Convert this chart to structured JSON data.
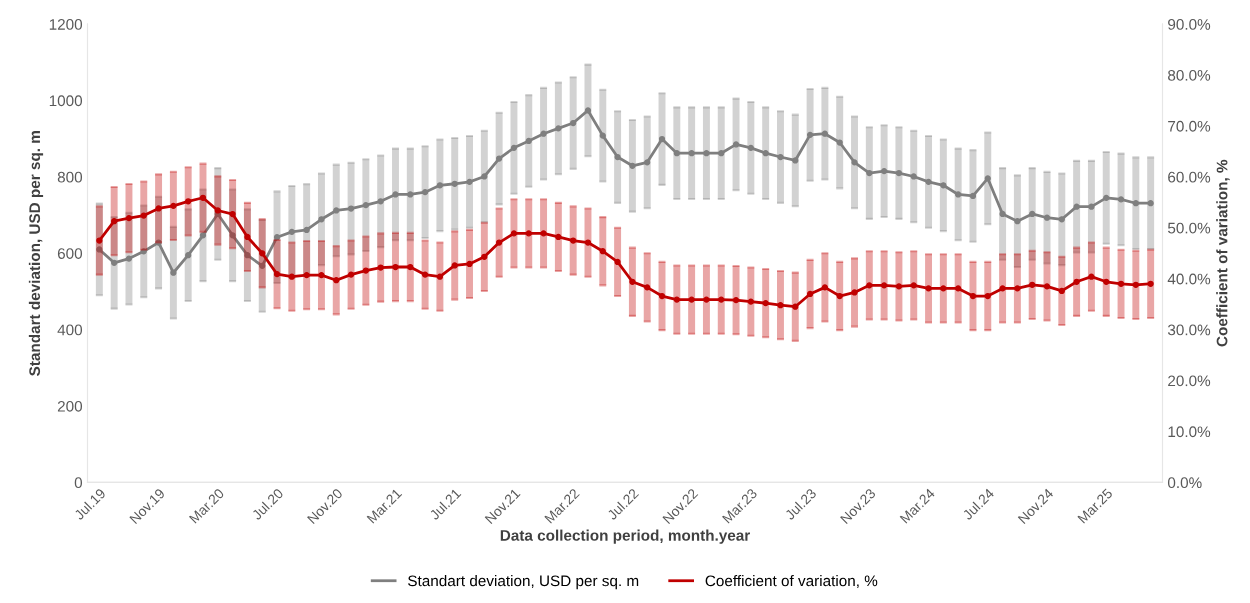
{
  "chart_data": {
    "type": "line",
    "xlabel": "Data collection period, month.year",
    "ylabel": "Standart deviation, USD per sq. m",
    "y2label": "Coefficient of variation, %",
    "categories": [
      "Jul.19",
      null,
      null,
      null,
      "Nov.19",
      null,
      null,
      null,
      "Mar.20",
      null,
      null,
      null,
      "Jul.20",
      null,
      null,
      null,
      "Nov.20",
      null,
      null,
      null,
      "Mar.21",
      null,
      null,
      null,
      "Jul.21",
      null,
      null,
      null,
      "Nov.21",
      null,
      null,
      null,
      "Mar.22",
      null,
      null,
      null,
      "Jul.22",
      null,
      null,
      null,
      "Nov.22",
      null,
      null,
      null,
      "Mar.23",
      null,
      null,
      null,
      "Jul.23",
      null,
      null,
      null,
      "Nov.23",
      null,
      null,
      null,
      "Mar.24",
      null,
      null,
      null,
      "Jul.24",
      null,
      null,
      null,
      "Nov.24",
      null,
      null,
      null,
      "Mar.25",
      null,
      null,
      null
    ],
    "series": [
      {
        "name": "Standart deviation, USD per sq. m",
        "color": "#7f7f7f",
        "axis": "y",
        "values": [
          610,
          575,
          586,
          605,
          628,
          549,
          595,
          647,
          703,
          647,
          595,
          567,
          642,
          656,
          661,
          689,
          712,
          717,
          726,
          736,
          754,
          754,
          760,
          778,
          782,
          787,
          801,
          848,
          876,
          894,
          913,
          927,
          941,
          974,
          908,
          852,
          829,
          838,
          899,
          862,
          862,
          862,
          862,
          885,
          876,
          862,
          852,
          843,
          910,
          913,
          890,
          838,
          810,
          815,
          810,
          801,
          787,
          778,
          754,
          750,
          796,
          703,
          684,
          703,
          693,
          689,
          722,
          722,
          745,
          741,
          731,
          731
        ],
        "errors": [
          120,
          120,
          120,
          120,
          120,
          120,
          120,
          120,
          120,
          120,
          120,
          120,
          120,
          120,
          120,
          120,
          120,
          120,
          120,
          120,
          120,
          120,
          120,
          120,
          120,
          120,
          120,
          120,
          120,
          120,
          120,
          120,
          120,
          120,
          120,
          120,
          120,
          120,
          120,
          120,
          120,
          120,
          120,
          120,
          120,
          120,
          120,
          120,
          120,
          120,
          120,
          120,
          120,
          120,
          120,
          120,
          120,
          120,
          120,
          120,
          120,
          120,
          120,
          120,
          120,
          120,
          120,
          120,
          120,
          120,
          120,
          120
        ]
      },
      {
        "name": "Coefficient of variation, %",
        "color": "#c00000",
        "axis": "y2",
        "values": [
          47.5,
          51.3,
          51.9,
          52.4,
          53.8,
          54.3,
          55.2,
          55.9,
          53.4,
          52.7,
          48.2,
          45.0,
          40.9,
          40.4,
          40.7,
          40.7,
          39.7,
          40.8,
          41.6,
          42.2,
          42.3,
          42.3,
          40.8,
          40.4,
          42.6,
          42.9,
          44.3,
          47.1,
          48.9,
          48.9,
          48.9,
          48.2,
          47.5,
          47.1,
          45.4,
          43.3,
          39.4,
          38.3,
          36.6,
          35.9,
          35.9,
          35.9,
          35.9,
          35.8,
          35.5,
          35.2,
          34.8,
          34.5,
          37.0,
          38.3,
          36.6,
          37.3,
          38.7,
          38.7,
          38.5,
          38.7,
          38.1,
          38.1,
          38.1,
          36.6,
          36.6,
          38.1,
          38.1,
          38.8,
          38.5,
          37.6,
          39.4,
          40.4,
          39.4,
          39.0,
          38.8,
          39.0
        ],
        "errors": [
          6.7,
          6.7,
          6.7,
          6.7,
          6.7,
          6.7,
          6.7,
          6.7,
          6.7,
          6.7,
          6.7,
          6.7,
          6.7,
          6.7,
          6.7,
          6.7,
          6.7,
          6.7,
          6.7,
          6.7,
          6.7,
          6.7,
          6.7,
          6.7,
          6.7,
          6.7,
          6.7,
          6.7,
          6.7,
          6.7,
          6.7,
          6.7,
          6.7,
          6.7,
          6.7,
          6.7,
          6.7,
          6.7,
          6.7,
          6.7,
          6.7,
          6.7,
          6.7,
          6.7,
          6.7,
          6.7,
          6.7,
          6.7,
          6.7,
          6.7,
          6.7,
          6.7,
          6.7,
          6.7,
          6.7,
          6.7,
          6.7,
          6.7,
          6.7,
          6.7,
          6.7,
          6.7,
          6.7,
          6.7,
          6.7,
          6.7,
          6.7,
          6.7,
          6.7,
          6.7,
          6.7,
          6.7
        ]
      }
    ],
    "ylim": [
      0,
      1200
    ],
    "yticks": [
      0,
      200,
      400,
      600,
      800,
      1000,
      1200
    ],
    "y2lim": [
      0,
      90
    ],
    "y2ticks": [
      {
        "value": 0,
        "label": "0.0%"
      },
      {
        "value": 10,
        "label": "10.0%"
      },
      {
        "value": 20,
        "label": "20.0%"
      },
      {
        "value": 30,
        "label": "30.0%"
      },
      {
        "value": 40,
        "label": "40.0%"
      },
      {
        "value": 50,
        "label": "50.0%"
      },
      {
        "value": 60,
        "label": "60.0%"
      },
      {
        "value": 70,
        "label": "70.0%"
      },
      {
        "value": 80,
        "label": "80.0%"
      },
      {
        "value": 90,
        "label": "90.0%"
      }
    ],
    "grid": false,
    "legend": "bottom",
    "marker": "circle",
    "line_style": "solid"
  }
}
